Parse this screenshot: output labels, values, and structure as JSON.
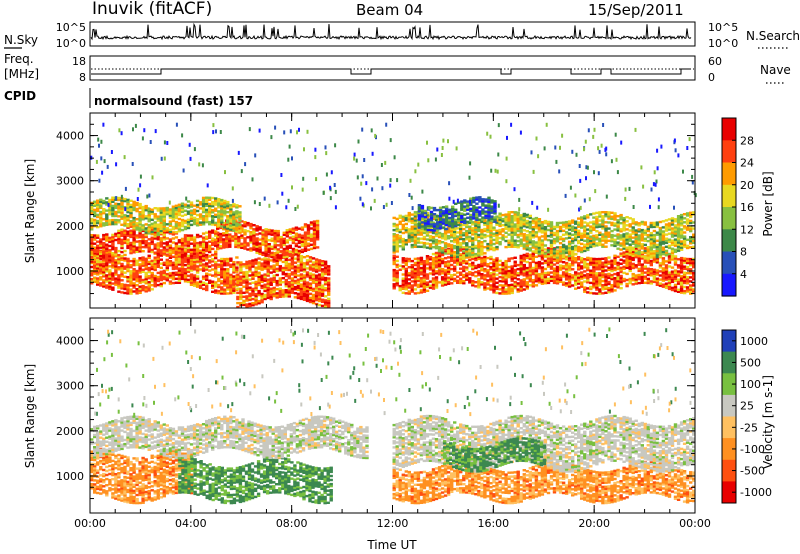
{
  "header": {
    "station": "Inuvik (fitACF)",
    "beam": "Beam 04",
    "date": "15/Sep/2011"
  },
  "strip_sky": {
    "left_label": "N.Sky",
    "right_label": "N.Search",
    "left_ticks": [
      "10^5",
      "10^0"
    ],
    "right_ticks": [
      "10^5",
      "10^0"
    ]
  },
  "strip_freq": {
    "left_label_1": "Freq.",
    "left_label_2": "[MHz]",
    "right_label": "Nave",
    "left_ticks": [
      "18",
      "8"
    ],
    "right_ticks": [
      "60",
      "0"
    ]
  },
  "strip_cpid": {
    "label": "CPID",
    "value": "normalsound (fast) 157"
  },
  "chart_data": [
    {
      "type": "heatmap",
      "name": "power",
      "xlabel": "Time UT",
      "ylabel": "Slant Range [km]",
      "x_ticks": [
        "00:00",
        "04:00",
        "08:00",
        "12:00",
        "16:00",
        "20:00",
        "00:00"
      ],
      "y_ticks": [
        "1000",
        "2000",
        "3000",
        "4000"
      ],
      "xlim_hours": [
        0,
        24
      ],
      "ylim_km": [
        180,
        4500
      ],
      "colorbar": {
        "label": "Power [dB]",
        "ticks": [
          "28",
          "24",
          "20",
          "16",
          "12",
          "8",
          "4"
        ],
        "colors": [
          "#1818ff",
          "#2850b8",
          "#3c8848",
          "#88c040",
          "#e8d820",
          "#ff9b00",
          "#ff4010",
          "#e80000"
        ]
      },
      "bands": [
        {
          "time": [
            0,
            5.8
          ],
          "range_km": [
            600,
            1400
          ],
          "level": "high"
        },
        {
          "time": [
            5.8,
            9.5
          ],
          "range_km": [
            300,
            1300
          ],
          "level": "high"
        },
        {
          "time": [
            5,
            9
          ],
          "range_km": [
            1400,
            2000
          ],
          "level": "high"
        },
        {
          "time": [
            0,
            5
          ],
          "range_km": [
            1300,
            1900
          ],
          "level": "high"
        },
        {
          "time": [
            0,
            6
          ],
          "range_km": [
            1900,
            2500
          ],
          "level": "medium"
        },
        {
          "time": [
            12,
            24
          ],
          "range_km": [
            600,
            1400
          ],
          "level": "high"
        },
        {
          "time": [
            12,
            24
          ],
          "range_km": [
            1400,
            2200
          ],
          "level": "medium"
        },
        {
          "time": [
            13,
            16
          ],
          "range_km": [
            2000,
            2500
          ],
          "level": "low"
        }
      ]
    },
    {
      "type": "heatmap",
      "name": "velocity",
      "xlabel": "Time UT",
      "ylabel": "Slant Range [km]",
      "x_ticks": [
        "00:00",
        "04:00",
        "08:00",
        "12:00",
        "16:00",
        "20:00",
        "00:00"
      ],
      "y_ticks": [
        "1000",
        "2000",
        "3000",
        "4000"
      ],
      "xlim_hours": [
        0,
        24
      ],
      "ylim_km": [
        180,
        4500
      ],
      "colorbar": {
        "label": "Velocity [m s-1]",
        "ticks": [
          "1000",
          "500",
          "100",
          "25",
          "-25",
          "-100",
          "-500",
          "-1000"
        ],
        "colors": [
          "#2040b8",
          "#3c8850",
          "#78c040",
          "#c8c8c0",
          "#ffc060",
          "#ff9020",
          "#ff5010",
          "#e80000"
        ]
      },
      "bands": [
        {
          "time": [
            0,
            4
          ],
          "range_km": [
            500,
            1500
          ],
          "level": "negative"
        },
        {
          "time": [
            3.5,
            9.5
          ],
          "range_km": [
            500,
            1300
          ],
          "level": "positive"
        },
        {
          "time": [
            0,
            11
          ],
          "range_km": [
            1500,
            2200
          ],
          "level": "near-zero"
        },
        {
          "time": [
            12,
            24
          ],
          "range_km": [
            500,
            1200
          ],
          "level": "negative"
        },
        {
          "time": [
            12,
            24
          ],
          "range_km": [
            1200,
            2200
          ],
          "level": "near-zero"
        },
        {
          "time": [
            14,
            18
          ],
          "range_km": [
            1200,
            1700
          ],
          "level": "positive"
        }
      ]
    }
  ]
}
